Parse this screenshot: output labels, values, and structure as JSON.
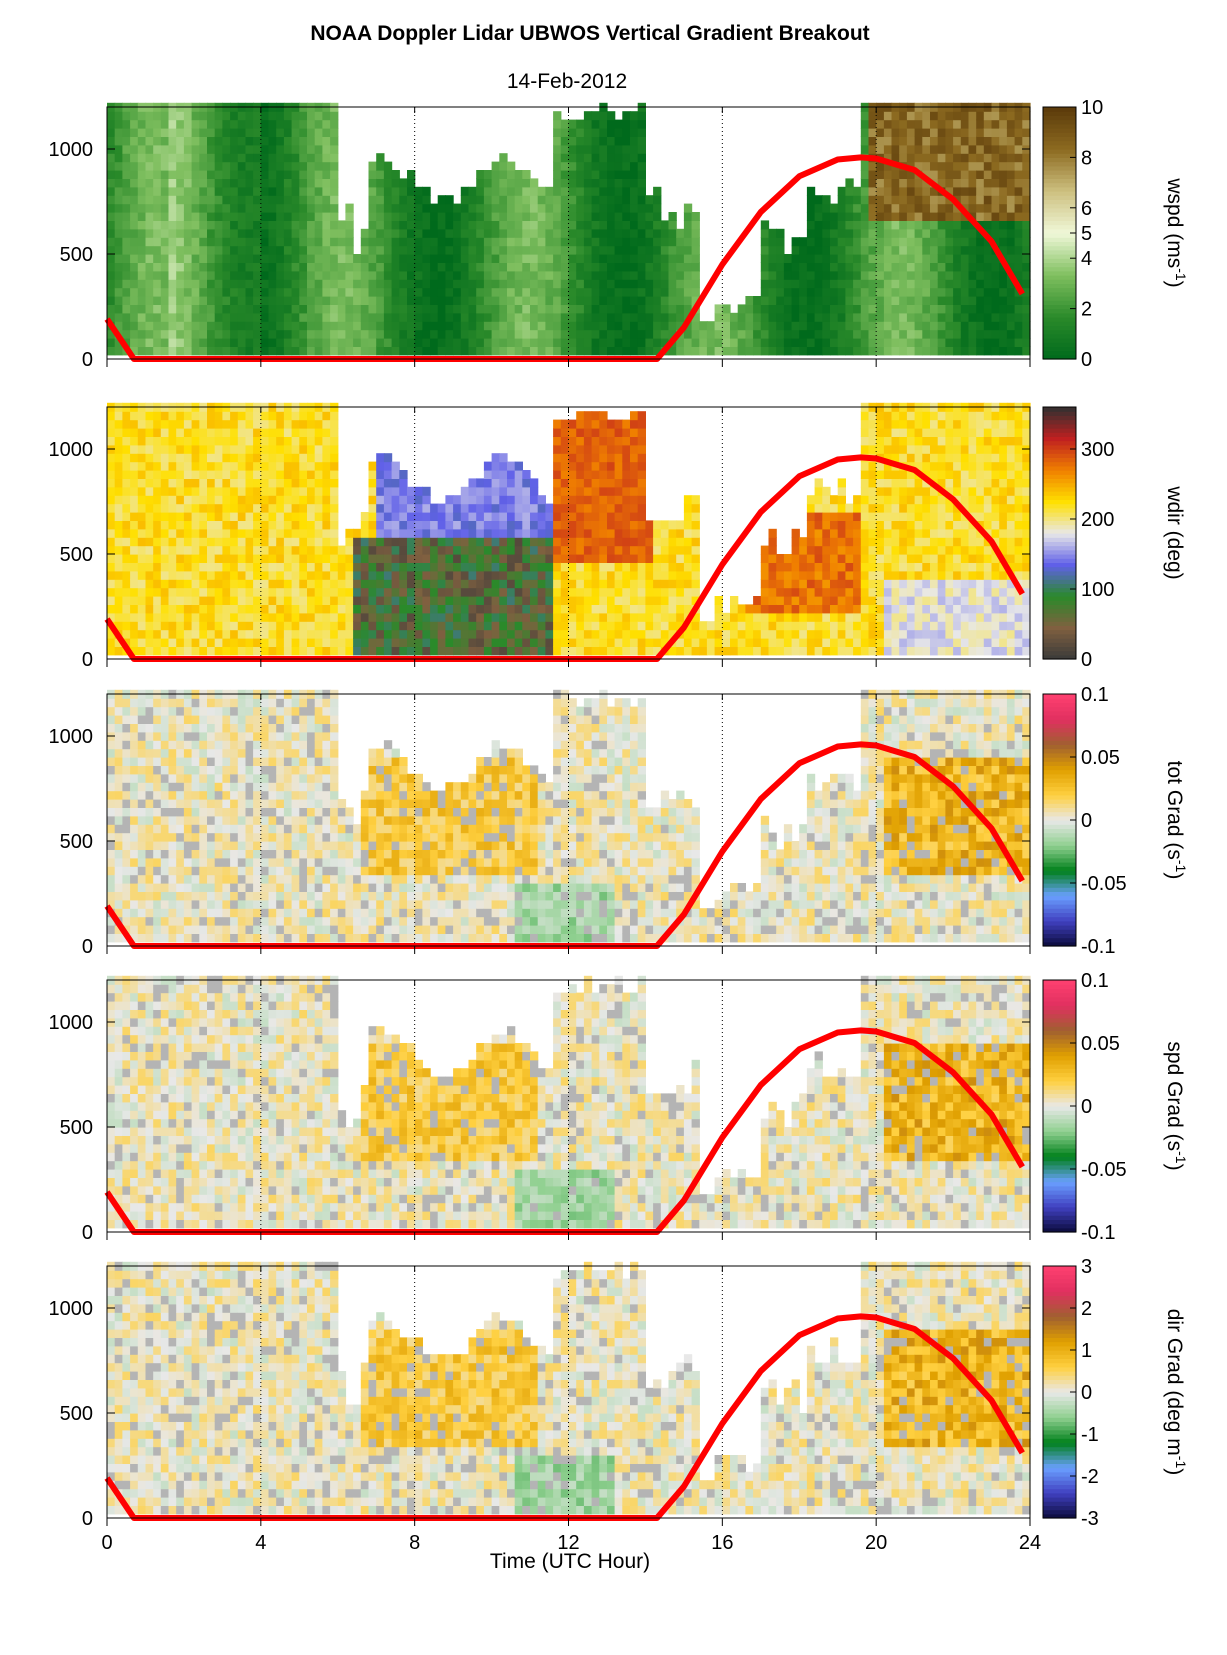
{
  "title": "NOAA Doppler Lidar  UBWOS  Vertical Gradient Breakout",
  "subtitle": "14-Feb-2012",
  "chart_data": {
    "type": "heatmap",
    "x_label": "Time (UTC Hour)",
    "x_range": [
      0,
      24
    ],
    "x_ticks": [
      "0",
      "4",
      "8",
      "12",
      "16",
      "20",
      "24"
    ],
    "x_tick_values": [
      0,
      4,
      8,
      12,
      16,
      20,
      24
    ],
    "y_range": [
      0,
      1200
    ],
    "y_ticks": [
      "0",
      "500",
      "1000"
    ],
    "y_tick_values": [
      0,
      500,
      1000
    ],
    "dotted_vertical_lines_at_hour": [
      4,
      8,
      12,
      16,
      20
    ],
    "overlay_line": {
      "color": "#ff0000",
      "points": [
        [
          0.0,
          190
        ],
        [
          0.7,
          0
        ],
        [
          14.3,
          0
        ],
        [
          15,
          150
        ],
        [
          16,
          450
        ],
        [
          17,
          700
        ],
        [
          18,
          870
        ],
        [
          19,
          950
        ],
        [
          19.6,
          960
        ],
        [
          20,
          955
        ],
        [
          21,
          900
        ],
        [
          22,
          760
        ],
        [
          23,
          560
        ],
        [
          23.8,
          310
        ]
      ]
    },
    "panels": [
      {
        "label_main": "wspd (ms",
        "label_sup": "-1",
        "label_tail": ")",
        "cbar_range": [
          0,
          10
        ],
        "cbar_ticks": [
          "0",
          "2",
          "4",
          "5",
          "6",
          "8",
          "10"
        ],
        "cbar_tick_values": [
          0,
          2,
          4,
          5,
          6,
          8,
          10
        ],
        "colormap": [
          "#006a1c",
          "#2a8a2a",
          "#7fbf5f",
          "#f0f8d8",
          "#cdc080",
          "#8c6a20",
          "#5a3a0a"
        ]
      },
      {
        "label_main": "wdir (deg)",
        "label_sup": "",
        "label_tail": "",
        "cbar_range": [
          0,
          360
        ],
        "cbar_ticks": [
          "0",
          "100",
          "200",
          "300"
        ],
        "cbar_tick_values": [
          0,
          100,
          200,
          300
        ],
        "colormap": [
          "#3a3a3a",
          "#806040",
          "#2a8a2a",
          "#6060e8",
          "#e8e8e8",
          "#ffe000",
          "#f08000",
          "#c02020",
          "#303030"
        ]
      },
      {
        "label_main": "tot Grad (s",
        "label_sup": "-1",
        "label_tail": ")",
        "cbar_range": [
          -0.1,
          0.1
        ],
        "cbar_ticks": [
          "-0.1",
          "-0.05",
          "0",
          "0.05",
          "0.1"
        ],
        "cbar_tick_values": [
          -0.1,
          -0.05,
          0,
          0.05,
          0.1
        ],
        "colormap": [
          "#0a0a3a",
          "#4040c0",
          "#6aa0ff",
          "#00801a",
          "#90d090",
          "#e8e8e8",
          "#ffd040",
          "#e0a000",
          "#a06030",
          "#e03060",
          "#ff4070"
        ]
      },
      {
        "label_main": "spd Grad (s",
        "label_sup": "-1",
        "label_tail": ")",
        "cbar_range": [
          -0.1,
          0.1
        ],
        "cbar_ticks": [
          "-0.1",
          "-0.05",
          "0",
          "0.05",
          "0.1"
        ],
        "cbar_tick_values": [
          -0.1,
          -0.05,
          0,
          0.05,
          0.1
        ],
        "colormap": [
          "#0a0a3a",
          "#4040c0",
          "#6aa0ff",
          "#00801a",
          "#90d090",
          "#e8e8e8",
          "#ffd040",
          "#e0a000",
          "#a06030",
          "#e03060",
          "#ff4070"
        ]
      },
      {
        "label_main": "dir Grad (deg m",
        "label_sup": "-1",
        "label_tail": ")",
        "cbar_range": [
          -3,
          3
        ],
        "cbar_ticks": [
          "-3",
          "-2",
          "-1",
          "0",
          "1",
          "2",
          "3"
        ],
        "cbar_tick_values": [
          -3,
          -2,
          -1,
          0,
          1,
          2,
          3
        ],
        "colormap": [
          "#0a0a3a",
          "#4040c0",
          "#6aa0ff",
          "#00801a",
          "#90d090",
          "#e8e8e8",
          "#ffd040",
          "#e0a000",
          "#a06030",
          "#e03060",
          "#ff4070"
        ]
      }
    ]
  }
}
